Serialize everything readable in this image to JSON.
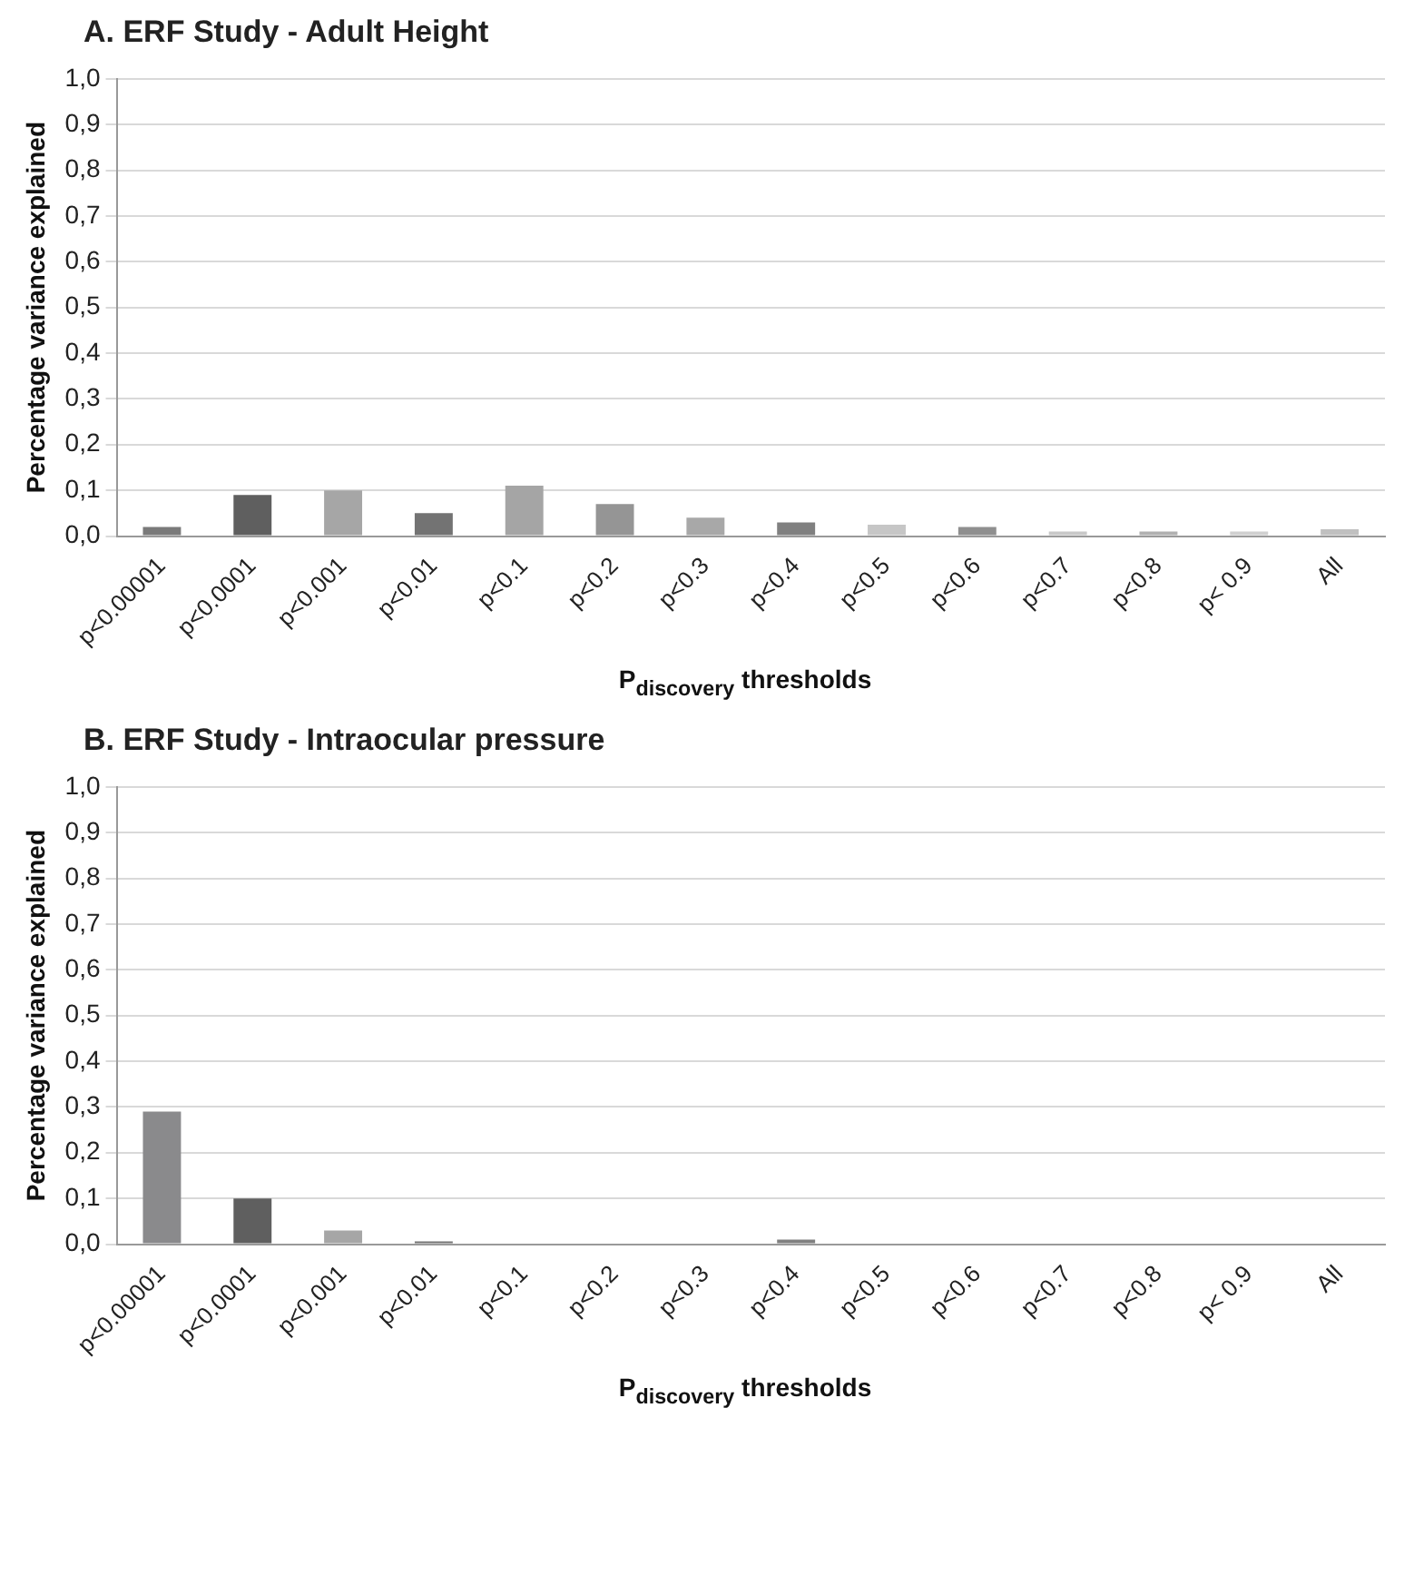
{
  "chart_data": [
    {
      "type": "bar",
      "title": "A. ERF Study - Adult Height",
      "xlabel": "P$_{discovery}$ thresholds",
      "ylabel": "Percentage variance explained",
      "categories": [
        "p<0.00001",
        "p<0.0001",
        "p<0.001",
        "p<0.01",
        "p<0.1",
        "p<0.2",
        "p<0.3",
        "p<0.4",
        "p<0.5",
        "p<0.6",
        "p<0.7",
        "p<0.8",
        "p< 0.9",
        "All"
      ],
      "values": [
        0.02,
        0.09,
        0.1,
        0.05,
        0.11,
        0.07,
        0.04,
        0.03,
        0.025,
        0.02,
        0.01,
        0.01,
        0.01,
        0.015
      ],
      "colors": [
        "#7a7a7a",
        "#5f5f5f",
        "#a6a6a6",
        "#737373",
        "#a5a5a5",
        "#959595",
        "#a8a8a8",
        "#808080",
        "#c6c6c6",
        "#8f8f8f",
        "#c8c8c8",
        "#b0b0b0",
        "#d0d0d0",
        "#c0c0c0"
      ],
      "ylim": [
        0,
        1
      ],
      "yticks": [
        {
          "value": 0,
          "label": "0,0"
        },
        {
          "value": 0.1,
          "label": "0,1"
        },
        {
          "value": 0.2,
          "label": "0,2"
        },
        {
          "value": 0.3,
          "label": "0,3"
        },
        {
          "value": 0.4,
          "label": "0,4"
        },
        {
          "value": 0.5,
          "label": "0,5"
        },
        {
          "value": 0.6,
          "label": "0,6"
        },
        {
          "value": 0.7,
          "label": "0,7"
        },
        {
          "value": 0.8,
          "label": "0,8"
        },
        {
          "value": 0.9,
          "label": "0,9"
        },
        {
          "value": 1,
          "label": "1,0"
        }
      ],
      "grid": "y"
    },
    {
      "type": "bar",
      "title": "B. ERF Study - Intraocular pressure",
      "xlabel": "P$_{discovery}$ thresholds",
      "ylabel": "Percentage variance explained",
      "categories": [
        "p<0.00001",
        "p<0.0001",
        "p<0.001",
        "p<0.01",
        "p<0.1",
        "p<0.2",
        "p<0.3",
        "p<0.4",
        "p<0.5",
        "p<0.6",
        "p<0.7",
        "p<0.8",
        "p< 0.9",
        "All"
      ],
      "values": [
        0.29,
        0.1,
        0.03,
        0.006,
        0,
        0,
        0,
        0.01,
        0,
        0,
        0,
        0,
        0,
        0
      ],
      "colors": [
        "#8a8a8c",
        "#5f5f5f",
        "#a6a6a6",
        "#737373",
        "#a5a5a5",
        "#959595",
        "#a8a8a8",
        "#808080",
        "#c6c6c6",
        "#8f8f8f",
        "#c8c8c8",
        "#b0b0b0",
        "#d0d0d0",
        "#c0c0c0"
      ],
      "ylim": [
        0,
        1
      ],
      "yticks": [
        {
          "value": 0,
          "label": "0,0"
        },
        {
          "value": 0.1,
          "label": "0,1"
        },
        {
          "value": 0.2,
          "label": "0,2"
        },
        {
          "value": 0.3,
          "label": "0,3"
        },
        {
          "value": 0.4,
          "label": "0,4"
        },
        {
          "value": 0.5,
          "label": "0,5"
        },
        {
          "value": 0.6,
          "label": "0,6"
        },
        {
          "value": 0.7,
          "label": "0,7"
        },
        {
          "value": 0.8,
          "label": "0,8"
        },
        {
          "value": 0.9,
          "label": "0,9"
        },
        {
          "value": 1,
          "label": "1,0"
        }
      ],
      "grid": "y"
    }
  ]
}
